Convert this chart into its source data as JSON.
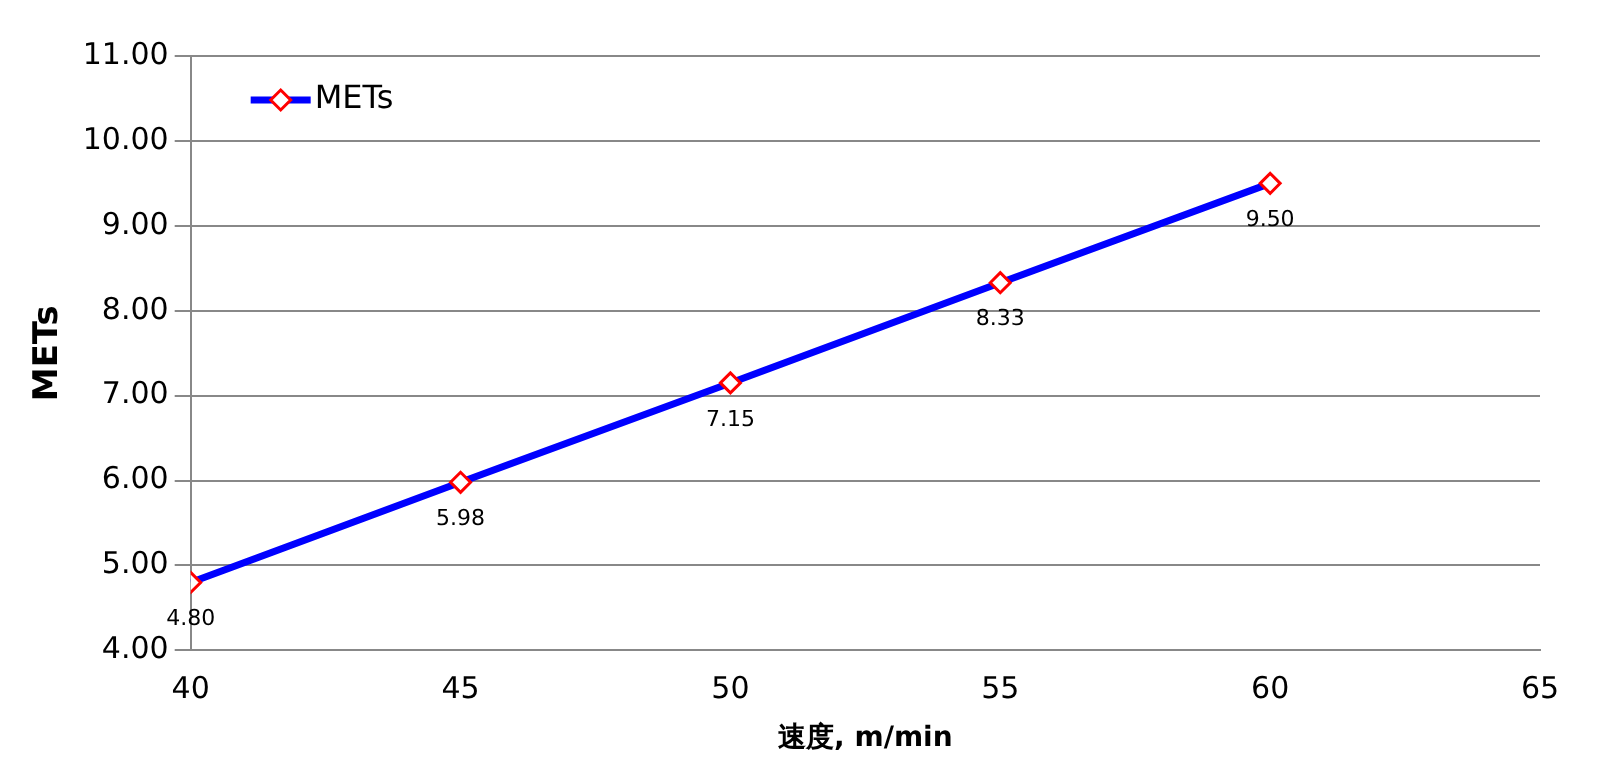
{
  "chart_data": {
    "type": "line",
    "xlabel": "速度, m/min",
    "ylabel": "METs",
    "x": [
      40,
      45,
      50,
      55,
      60
    ],
    "series": [
      {
        "name": "METs",
        "color": "#0000ff",
        "values": [
          4.8,
          5.98,
          7.15,
          8.33,
          9.5
        ],
        "value_labels": [
          "4.80",
          "5.98",
          "7.15",
          "8.33",
          "9.50"
        ]
      }
    ],
    "xlim": [
      40,
      65
    ],
    "xticks": [
      40,
      45,
      50,
      55,
      60,
      65
    ],
    "ylim": [
      4,
      11
    ],
    "yticks": [
      {
        "value": 4,
        "label": "4.00"
      },
      {
        "value": 5,
        "label": "5.00"
      },
      {
        "value": 6,
        "label": "6.00"
      },
      {
        "value": 7,
        "label": "7.00"
      },
      {
        "value": 8,
        "label": "8.00"
      },
      {
        "value": 9,
        "label": "9.00"
      },
      {
        "value": 10,
        "label": "10.00"
      },
      {
        "value": 11,
        "label": "11.00"
      }
    ],
    "grid": "y",
    "legend": "top left",
    "marker": "diamond",
    "line_style": "solid"
  }
}
